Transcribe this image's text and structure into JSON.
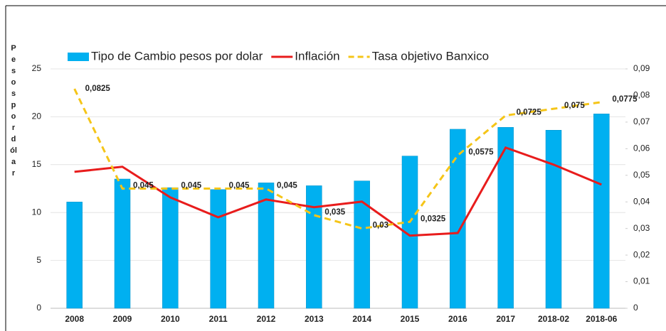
{
  "chart_data": {
    "type": "bar_line",
    "y_label": "Pesos por dólar",
    "categories": [
      "2008",
      "2009",
      "2010",
      "2011",
      "2012",
      "2013",
      "2014",
      "2015",
      "2016",
      "2017",
      "2018-02",
      "2018-06"
    ],
    "ylim": [
      0,
      25
    ],
    "yticks": [
      0,
      5,
      10,
      15,
      20,
      25
    ],
    "y2lim": [
      0,
      0.09
    ],
    "y2ticks": [
      0,
      {
        "value": 0.01,
        "label": "0,01"
      },
      {
        "value": 0.02,
        "label": "0,02"
      },
      {
        "value": 0.03,
        "label": "0,03"
      },
      {
        "value": 0.04,
        "label": "0,04"
      },
      {
        "value": 0.05,
        "label": "0,05"
      },
      {
        "value": 0.06,
        "label": "0,06"
      },
      {
        "value": 0.07,
        "label": "0,07"
      },
      {
        "value": 0.08,
        "label": "0,08"
      },
      {
        "value": 0.09,
        "label": "0,09"
      }
    ],
    "grid": true,
    "series": [
      {
        "name": "Tipo de Cambio pesos por dolar",
        "type": "bar",
        "color": "#00b0f0",
        "values": [
          11.1,
          13.5,
          12.6,
          12.4,
          13.1,
          12.8,
          13.3,
          15.9,
          18.7,
          18.9,
          18.6,
          20.3
        ]
      },
      {
        "name": "Inflación",
        "type": "line",
        "axis": "y2",
        "color": "#e81c1c",
        "values": [
          0.0513,
          0.0532,
          0.0417,
          0.0342,
          0.0409,
          0.038,
          0.0401,
          0.0273,
          0.0283,
          0.0604,
          0.054,
          0.0465
        ]
      },
      {
        "name": "Tasa objetivo Banxico",
        "type": "dashed",
        "axis": "y2",
        "color": "#f5c518",
        "values": [
          0.0825,
          0.045,
          0.045,
          0.045,
          0.045,
          0.035,
          0.03,
          0.0325,
          0.0575,
          0.0725,
          0.075,
          0.0775
        ],
        "value_labels": [
          "0,0825",
          "0,045",
          "0,045",
          "0,045",
          "0,045",
          "0,035",
          "0,03",
          "0,0325",
          "0,0575",
          "0,0725",
          "0,075",
          "0,0775"
        ]
      }
    ]
  }
}
